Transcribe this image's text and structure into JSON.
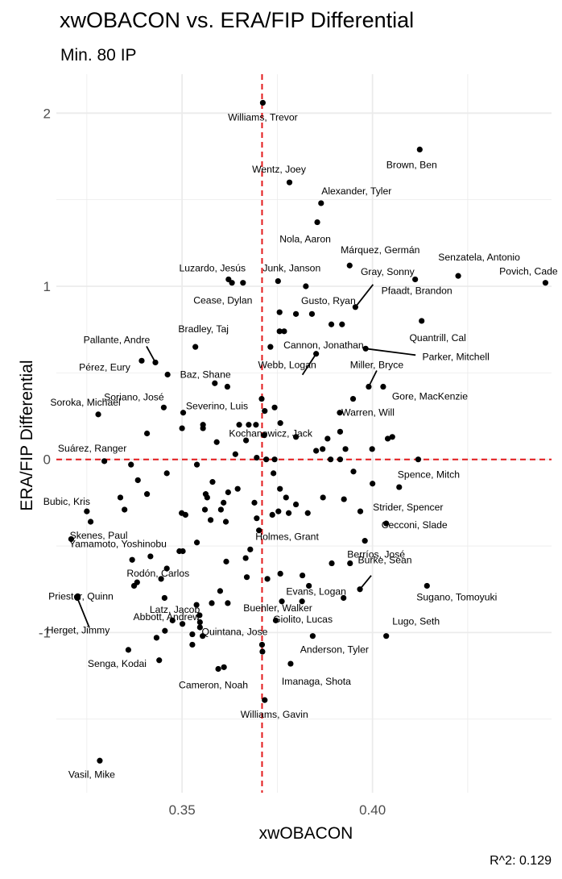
{
  "chart_data": {
    "type": "scatter",
    "title": "xwOBACON vs. ERA/FIP Differential",
    "subtitle": "Min. 80 IP",
    "xlabel": "xwOBACON",
    "ylabel": "ERA/FIP Differential",
    "caption": "R^2: 0.129",
    "xlim": [
      0.317,
      0.447
    ],
    "ylim": [
      -1.925,
      2.225
    ],
    "x_ticks": [
      0.35,
      0.4
    ],
    "x_tick_labels": [
      "0.35",
      "0.40"
    ],
    "y_ticks": [
      -1,
      0,
      1,
      2
    ],
    "y_tick_labels": [
      "-1",
      "0",
      "1",
      "2"
    ],
    "reference_lines": {
      "x": 0.371,
      "y": 0,
      "color": "#e31a1c",
      "style": "dashed"
    },
    "colors": {
      "point": "#000000",
      "grid": "#ebebeb",
      "reference": "#e31a1c"
    },
    "labeled_points": [
      {
        "name": "Williams, Trevor",
        "x": 0.3712,
        "y": 2.06
      },
      {
        "name": "Brown, Ben",
        "x": 0.4124,
        "y": 1.79
      },
      {
        "name": "Wentz, Joey",
        "x": 0.3782,
        "y": 1.6
      },
      {
        "name": "Alexander, Tyler",
        "x": 0.3865,
        "y": 1.48
      },
      {
        "name": "Nola, Aaron",
        "x": 0.3855,
        "y": 1.37
      },
      {
        "name": "Márquez, Germán",
        "x": 0.394,
        "y": 1.12
      },
      {
        "name": "Senzatela, Antonio",
        "x": 0.4225,
        "y": 1.06
      },
      {
        "name": "Povich, Cade",
        "x": 0.4454,
        "y": 1.02
      },
      {
        "name": "Luzardo, Jesús",
        "x": 0.3622,
        "y": 1.04
      },
      {
        "name": "Junk, Janson",
        "x": 0.3752,
        "y": 1.03
      },
      {
        "name": "Cease, Dylan",
        "x": 0.366,
        "y": 1.02
      },
      {
        "name": "Gray, Sonny",
        "x": 0.3955,
        "y": 0.88
      },
      {
        "name": "Pfaadt, Brandon",
        "x": 0.4112,
        "y": 1.04
      },
      {
        "name": "Gusto, Ryan",
        "x": 0.3825,
        "y": 1.0
      },
      {
        "name": "Quantrill, Cal",
        "x": 0.4129,
        "y": 0.8
      },
      {
        "name": "Bradley, Taj",
        "x": 0.3535,
        "y": 0.65
      },
      {
        "name": "Pallante, Andre",
        "x": 0.343,
        "y": 0.56
      },
      {
        "name": "Cannon, Jonathan",
        "x": 0.3768,
        "y": 0.74
      },
      {
        "name": "Webb, Logan",
        "x": 0.3852,
        "y": 0.61
      },
      {
        "name": "Parker, Mitchell",
        "x": 0.3982,
        "y": 0.64
      },
      {
        "name": "Baz, Shane",
        "x": 0.3462,
        "y": 0.49
      },
      {
        "name": "Pérez, Eury",
        "x": 0.3394,
        "y": 0.57
      },
      {
        "name": "Miller, Bryce",
        "x": 0.399,
        "y": 0.42
      },
      {
        "name": "Kochanowicz, Jack",
        "x": 0.3758,
        "y": 0.21
      },
      {
        "name": "Soriano, José",
        "x": 0.3452,
        "y": 0.3
      },
      {
        "name": "Gore, MacKenzie",
        "x": 0.4028,
        "y": 0.42
      },
      {
        "name": "Soroka, Michael",
        "x": 0.328,
        "y": 0.26
      },
      {
        "name": "Severino, Luis",
        "x": 0.3503,
        "y": 0.27
      },
      {
        "name": "Warren, Will",
        "x": 0.3914,
        "y": 0.27
      },
      {
        "name": "Suárez, Ranger",
        "x": 0.3296,
        "y": -0.01
      },
      {
        "name": "Spence, Mitch",
        "x": 0.412,
        "y": 0.0
      },
      {
        "name": "Bubic, Kris",
        "x": 0.325,
        "y": -0.3
      },
      {
        "name": "Skenes, Paul",
        "x": 0.326,
        "y": -0.36
      },
      {
        "name": "Strider, Spencer",
        "x": 0.407,
        "y": -0.16
      },
      {
        "name": "Holmes, Grant",
        "x": 0.378,
        "y": -0.31
      },
      {
        "name": "Cecconi, Slade",
        "x": 0.4036,
        "y": -0.37
      },
      {
        "name": "Yamamoto, Yoshinobu",
        "x": 0.3209,
        "y": -0.46
      },
      {
        "name": "Berríos, José",
        "x": 0.398,
        "y": -0.47
      },
      {
        "name": "Rodón, Carlos",
        "x": 0.3382,
        "y": -0.71
      },
      {
        "name": "Burke, Sean",
        "x": 0.3967,
        "y": -0.75
      },
      {
        "name": "Latz, Jacob",
        "x": 0.3538,
        "y": -0.84
      },
      {
        "name": "Evans, Logan",
        "x": 0.3833,
        "y": -0.73
      },
      {
        "name": "Sugano, Tomoyuki",
        "x": 0.4143,
        "y": -0.73
      },
      {
        "name": "Priester, Quinn",
        "x": 0.3226,
        "y": -0.79
      },
      {
        "name": "Abbott, Andrew",
        "x": 0.3546,
        "y": -0.9
      },
      {
        "name": "Buehler, Walker",
        "x": 0.3762,
        "y": -0.82
      },
      {
        "name": "Giolito, Lucas",
        "x": 0.3815,
        "y": -0.82
      },
      {
        "name": "Herget, Jimmy",
        "x": 0.3225,
        "y": -0.8
      },
      {
        "name": "Lugo, Seth",
        "x": 0.4036,
        "y": -1.02
      },
      {
        "name": "Quintana, Jose",
        "x": 0.371,
        "y": -1.07
      },
      {
        "name": "Senga, Kodai",
        "x": 0.3359,
        "y": -1.1
      },
      {
        "name": "Anderson, Tyler",
        "x": 0.3843,
        "y": -1.02
      },
      {
        "name": "Imanaga, Shota",
        "x": 0.3785,
        "y": -1.18
      },
      {
        "name": "Cameron, Noah",
        "x": 0.3595,
        "y": -1.21
      },
      {
        "name": "Williams, Gavin",
        "x": 0.3717,
        "y": -1.39
      },
      {
        "name": "Vasil, Mike",
        "x": 0.3284,
        "y": -1.74
      }
    ],
    "unlabeled_points": [
      {
        "x": 0.3631,
        "y": 1.02
      },
      {
        "x": 0.3756,
        "y": 0.85
      },
      {
        "x": 0.3799,
        "y": 0.84
      },
      {
        "x": 0.3841,
        "y": 0.84
      },
      {
        "x": 0.3892,
        "y": 0.78
      },
      {
        "x": 0.392,
        "y": 0.78
      },
      {
        "x": 0.3756,
        "y": 0.74
      },
      {
        "x": 0.3732,
        "y": 0.65
      },
      {
        "x": 0.3586,
        "y": 0.44
      },
      {
        "x": 0.3619,
        "y": 0.42
      },
      {
        "x": 0.3709,
        "y": 0.35
      },
      {
        "x": 0.3743,
        "y": 0.3
      },
      {
        "x": 0.3949,
        "y": 0.35
      },
      {
        "x": 0.3717,
        "y": 0.28
      },
      {
        "x": 0.3555,
        "y": 0.2
      },
      {
        "x": 0.3555,
        "y": 0.18
      },
      {
        "x": 0.3675,
        "y": 0.2
      },
      {
        "x": 0.365,
        "y": 0.2
      },
      {
        "x": 0.3694,
        "y": 0.2
      },
      {
        "x": 0.3408,
        "y": 0.15
      },
      {
        "x": 0.35,
        "y": 0.18
      },
      {
        "x": 0.3668,
        "y": 0.11
      },
      {
        "x": 0.3716,
        "y": 0.14
      },
      {
        "x": 0.3799,
        "y": 0.13
      },
      {
        "x": 0.3869,
        "y": 0.06
      },
      {
        "x": 0.3852,
        "y": 0.05
      },
      {
        "x": 0.3882,
        "y": 0.12
      },
      {
        "x": 0.3915,
        "y": 0.16
      },
      {
        "x": 0.3929,
        "y": 0.06
      },
      {
        "x": 0.404,
        "y": 0.12
      },
      {
        "x": 0.4052,
        "y": 0.13
      },
      {
        "x": 0.3591,
        "y": 0.1
      },
      {
        "x": 0.364,
        "y": 0.03
      },
      {
        "x": 0.3696,
        "y": 0.01
      },
      {
        "x": 0.3721,
        "y": 0.0
      },
      {
        "x": 0.3743,
        "y": 0.0
      },
      {
        "x": 0.389,
        "y": 0.0
      },
      {
        "x": 0.3915,
        "y": 0.0
      },
      {
        "x": 0.3999,
        "y": 0.06
      },
      {
        "x": 0.3366,
        "y": -0.03
      },
      {
        "x": 0.3384,
        "y": -0.12
      },
      {
        "x": 0.346,
        "y": -0.08
      },
      {
        "x": 0.3539,
        "y": -0.03
      },
      {
        "x": 0.374,
        "y": -0.08
      },
      {
        "x": 0.395,
        "y": -0.07
      },
      {
        "x": 0.4,
        "y": -0.14
      },
      {
        "x": 0.3757,
        "y": -0.17
      },
      {
        "x": 0.358,
        "y": -0.13
      },
      {
        "x": 0.3646,
        "y": -0.17
      },
      {
        "x": 0.3562,
        "y": -0.2
      },
      {
        "x": 0.3566,
        "y": -0.22
      },
      {
        "x": 0.3621,
        "y": -0.19
      },
      {
        "x": 0.3609,
        "y": -0.25
      },
      {
        "x": 0.3338,
        "y": -0.22
      },
      {
        "x": 0.3408,
        "y": -0.2
      },
      {
        "x": 0.3349,
        "y": -0.29
      },
      {
        "x": 0.356,
        "y": -0.29
      },
      {
        "x": 0.3602,
        "y": -0.29
      },
      {
        "x": 0.369,
        "y": -0.25
      },
      {
        "x": 0.3753,
        "y": -0.3
      },
      {
        "x": 0.3773,
        "y": -0.22
      },
      {
        "x": 0.3799,
        "y": -0.26
      },
      {
        "x": 0.383,
        "y": -0.31
      },
      {
        "x": 0.387,
        "y": -0.22
      },
      {
        "x": 0.3925,
        "y": -0.23
      },
      {
        "x": 0.3968,
        "y": -0.3
      },
      {
        "x": 0.3696,
        "y": -0.34
      },
      {
        "x": 0.3499,
        "y": -0.31
      },
      {
        "x": 0.3509,
        "y": -0.32
      },
      {
        "x": 0.3575,
        "y": -0.35
      },
      {
        "x": 0.3615,
        "y": -0.36
      },
      {
        "x": 0.3737,
        "y": -0.32
      },
      {
        "x": 0.3702,
        "y": -0.41
      },
      {
        "x": 0.3539,
        "y": -0.48
      },
      {
        "x": 0.3493,
        "y": -0.53
      },
      {
        "x": 0.3502,
        "y": -0.53
      },
      {
        "x": 0.3369,
        "y": -0.58
      },
      {
        "x": 0.3417,
        "y": -0.56
      },
      {
        "x": 0.346,
        "y": -0.63
      },
      {
        "x": 0.3616,
        "y": -0.59
      },
      {
        "x": 0.3667,
        "y": -0.57
      },
      {
        "x": 0.3679,
        "y": -0.52
      },
      {
        "x": 0.3758,
        "y": -0.66
      },
      {
        "x": 0.3816,
        "y": -0.67
      },
      {
        "x": 0.3893,
        "y": -0.6
      },
      {
        "x": 0.3941,
        "y": -0.6
      },
      {
        "x": 0.367,
        "y": -0.68
      },
      {
        "x": 0.3724,
        "y": -0.69
      },
      {
        "x": 0.3445,
        "y": -0.69
      },
      {
        "x": 0.3374,
        "y": -0.73
      },
      {
        "x": 0.36,
        "y": -0.76
      },
      {
        "x": 0.3578,
        "y": -0.83
      },
      {
        "x": 0.362,
        "y": -0.83
      },
      {
        "x": 0.3454,
        "y": -0.8
      },
      {
        "x": 0.3924,
        "y": -0.8
      },
      {
        "x": 0.3746,
        "y": -0.93
      },
      {
        "x": 0.3475,
        "y": -0.93
      },
      {
        "x": 0.3501,
        "y": -0.95
      },
      {
        "x": 0.3547,
        "y": -0.94
      },
      {
        "x": 0.3547,
        "y": -0.97
      },
      {
        "x": 0.3433,
        "y": -1.03
      },
      {
        "x": 0.3455,
        "y": -0.99
      },
      {
        "x": 0.3527,
        "y": -1.01
      },
      {
        "x": 0.3527,
        "y": -1.07
      },
      {
        "x": 0.3554,
        "y": -1.02
      },
      {
        "x": 0.3711,
        "y": -1.11
      },
      {
        "x": 0.344,
        "y": -1.16
      },
      {
        "x": 0.361,
        "y": -1.2
      }
    ]
  }
}
